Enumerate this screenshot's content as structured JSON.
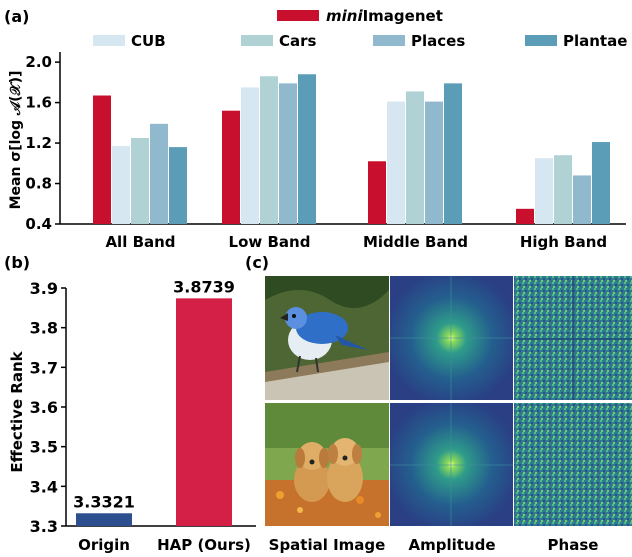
{
  "panel_a": {
    "label": "(a)",
    "legend_top_italic": "mini",
    "legend_top_rest": "Imagenet",
    "legend": [
      "CUB",
      "Cars",
      "Places",
      "Plantae"
    ],
    "ylabel": "Mean σ[log 𝒜(𝒳)]"
  },
  "panel_b": {
    "label": "(b)",
    "ylabel": "Effective Rank"
  },
  "panel_c": {
    "label": "(c)",
    "captions": [
      "Spatial Image",
      "Amplitude",
      "Phase"
    ]
  },
  "colors": {
    "miniImagenet": "#c8102e",
    "CUB": "#d6e7f2",
    "Cars": "#b0d2d5",
    "Places": "#90b9cd",
    "Plantae": "#5b9db7",
    "origin_bar": "#2e4f8f",
    "hap_bar": "#d42047"
  },
  "chart_data": [
    {
      "type": "bar",
      "categories": [
        "All Band",
        "Low Band",
        "Middle Band",
        "High Band"
      ],
      "series": [
        {
          "name": "miniImagenet",
          "values": [
            1.67,
            1.52,
            1.02,
            0.55
          ]
        },
        {
          "name": "CUB",
          "values": [
            1.17,
            1.75,
            1.61,
            1.05
          ]
        },
        {
          "name": "Cars",
          "values": [
            1.25,
            1.86,
            1.71,
            1.08
          ]
        },
        {
          "name": "Places",
          "values": [
            1.39,
            1.79,
            1.61,
            0.88
          ]
        },
        {
          "name": "Plantae",
          "values": [
            1.16,
            1.88,
            1.79,
            1.21
          ]
        }
      ],
      "ylim": [
        0.4,
        2.1
      ],
      "yticks": [
        "0.4",
        "0.8",
        "1.2",
        "1.6",
        "2.0"
      ],
      "ylabel": "Mean σ[log 𝒜(𝒳)]",
      "legend_position": "top"
    },
    {
      "type": "bar",
      "categories": [
        "Origin",
        "HAP (Ours)"
      ],
      "values": [
        3.3321,
        3.8739
      ],
      "value_labels": [
        "3.3321",
        "3.8739"
      ],
      "ylim": [
        3.3,
        3.9
      ],
      "yticks": [
        "3.3",
        "3.4",
        "3.5",
        "3.6",
        "3.7",
        "3.8",
        "3.9"
      ],
      "ylabel": "Effective Rank"
    }
  ]
}
